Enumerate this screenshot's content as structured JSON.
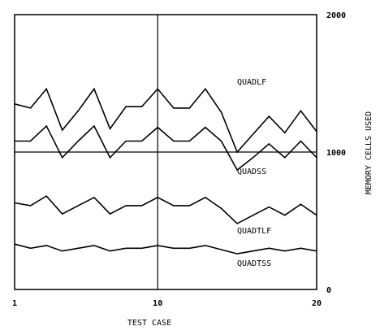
{
  "chart_data": {
    "type": "line",
    "xlabel": "TEST CASE",
    "ylabel": "MEMORY CELLS USED",
    "xlim": [
      1,
      20
    ],
    "ylim": [
      0,
      2000
    ],
    "x_ticks": [
      "1",
      "10",
      "20"
    ],
    "y_ticks": [
      "0",
      "1000",
      "2000"
    ],
    "grid": "reference lines at x=10 and y=1000",
    "x": [
      1,
      2,
      3,
      4,
      5,
      6,
      7,
      8,
      9,
      10,
      11,
      12,
      13,
      14,
      15,
      16,
      17,
      18,
      19,
      20
    ],
    "series": [
      {
        "name": "QUADLF",
        "values": [
          1350,
          1320,
          1460,
          1160,
          1300,
          1460,
          1170,
          1330,
          1330,
          1460,
          1320,
          1320,
          1460,
          1290,
          1000,
          1130,
          1260,
          1140,
          1300,
          1150
        ]
      },
      {
        "name": "QUADSS",
        "values": [
          1080,
          1080,
          1190,
          960,
          1080,
          1190,
          960,
          1080,
          1080,
          1180,
          1080,
          1080,
          1180,
          1080,
          870,
          960,
          1060,
          960,
          1080,
          960
        ]
      },
      {
        "name": "QUADTLF",
        "values": [
          630,
          610,
          680,
          550,
          610,
          670,
          550,
          610,
          610,
          670,
          610,
          610,
          670,
          590,
          480,
          540,
          600,
          540,
          620,
          540
        ]
      },
      {
        "name": "QUADTSS",
        "values": [
          330,
          300,
          320,
          280,
          300,
          320,
          280,
          300,
          300,
          320,
          300,
          300,
          320,
          290,
          260,
          280,
          300,
          280,
          300,
          280
        ]
      }
    ]
  }
}
